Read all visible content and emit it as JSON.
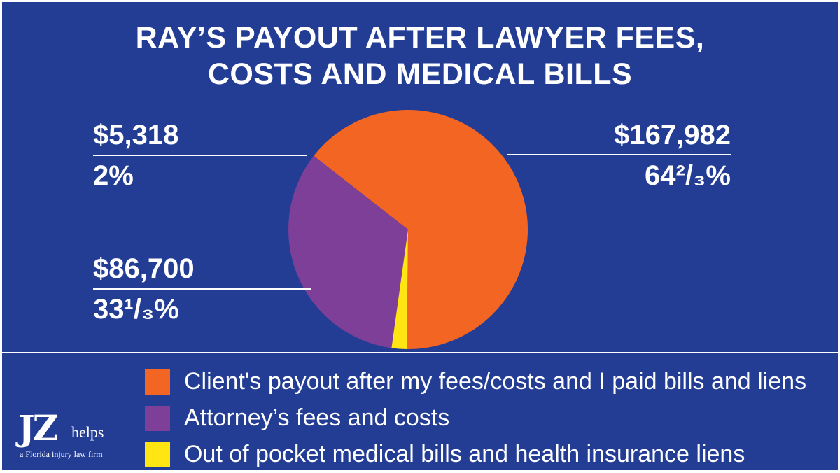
{
  "header": {
    "title_line1": "RAY’S PAYOUT AFTER LAWYER FEES,",
    "title_line2": "COSTS AND MEDICAL BILLS"
  },
  "chart_data": {
    "type": "pie",
    "title": "RAY’S PAYOUT AFTER LAWYER FEES, COSTS AND MEDICAL BILLS",
    "legend_position": "bottom",
    "slices": [
      {
        "name": "Client's payout after my fees/costs and I paid bills and liens",
        "value": 167982,
        "value_label": "$167,982",
        "percent_label": "64²/₃%",
        "percent": 64.6667,
        "color": "#f26522"
      },
      {
        "name": "Attorney’s fees and costs",
        "value": 86700,
        "value_label": "$86,700",
        "percent_label": "33¹/₃%",
        "percent": 33.3333,
        "color": "#7d3f98"
      },
      {
        "name": "Out of pocket medical bills and health insurance liens",
        "value": 5318,
        "value_label": "$5,318",
        "percent_label": "2%",
        "percent": 2,
        "color": "#ffe512"
      }
    ]
  },
  "branding": {
    "logo_mark": "JZ",
    "logo_word": "helps",
    "logo_tagline": "a Florida injury law firm"
  }
}
